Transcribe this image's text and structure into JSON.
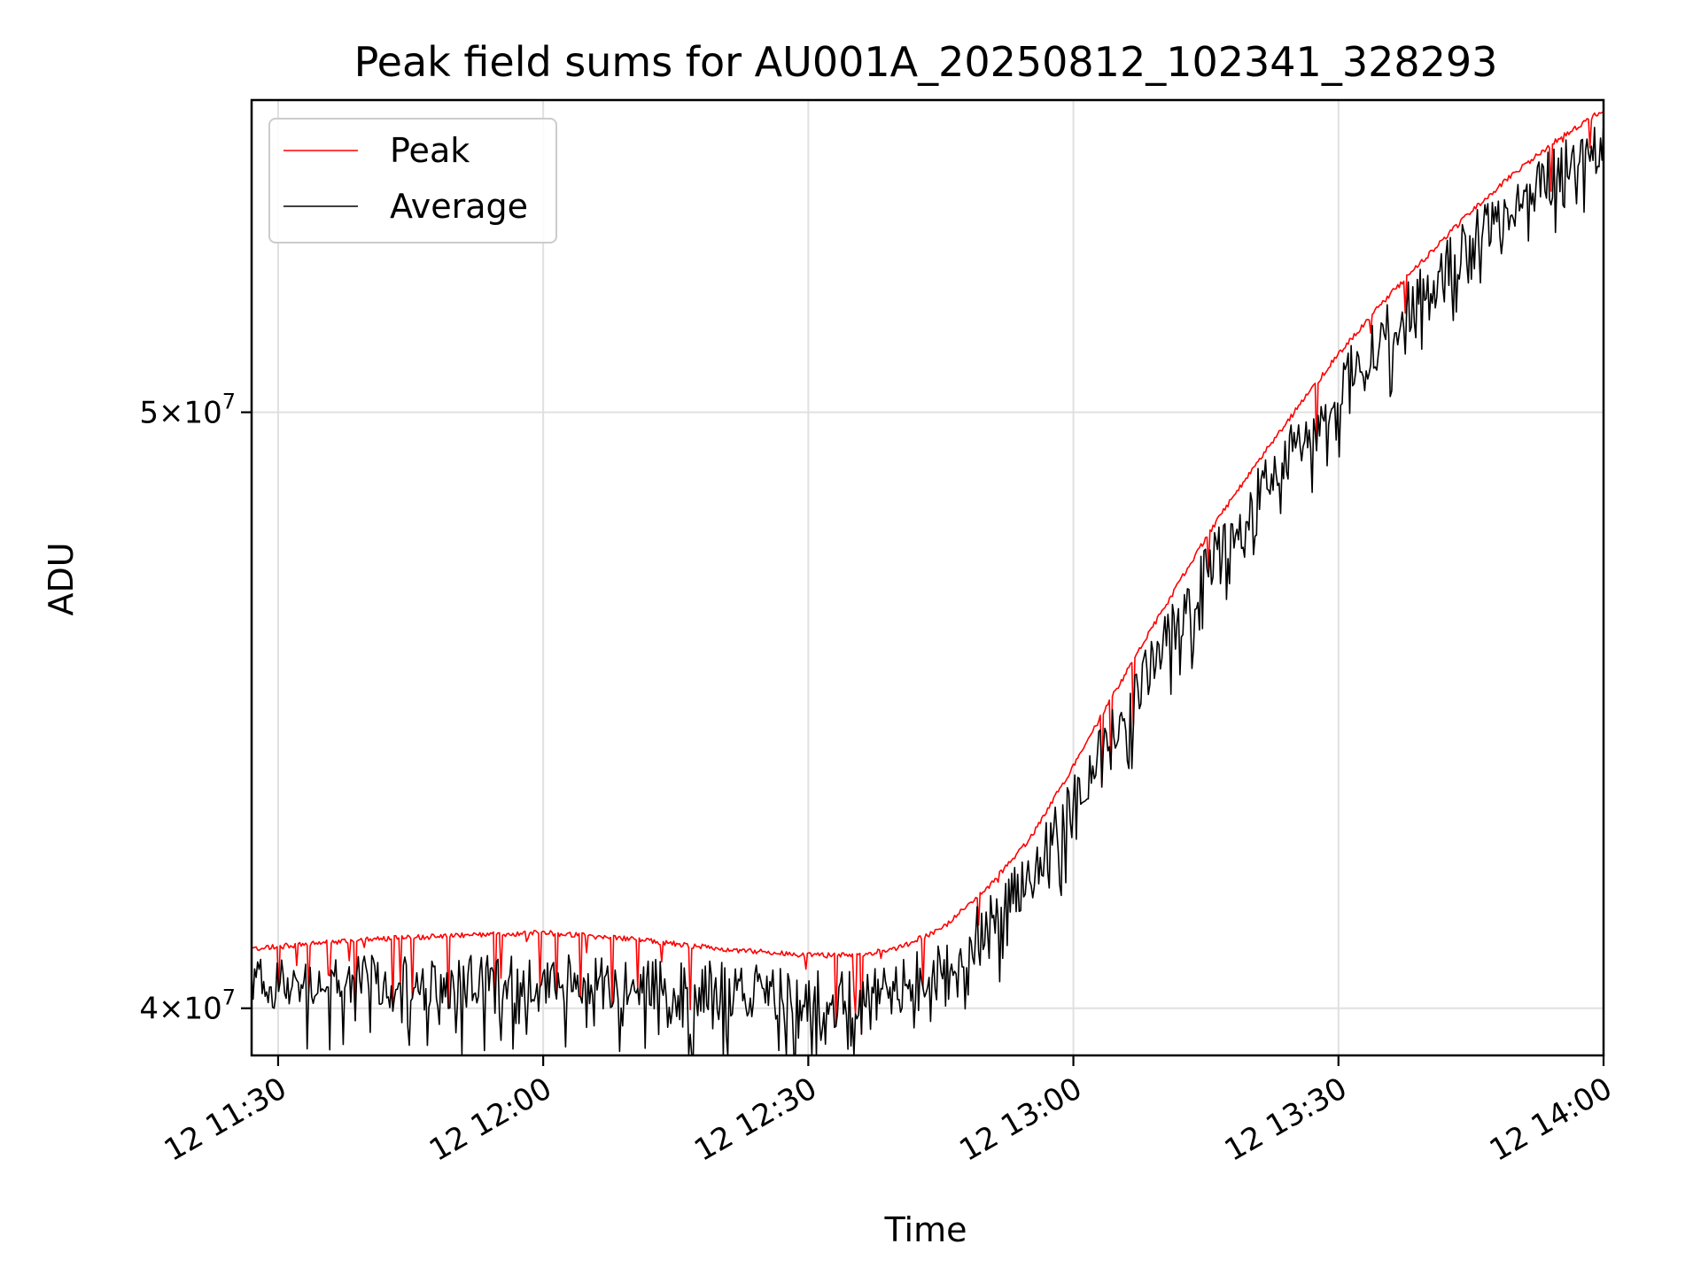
{
  "chart_data": {
    "type": "line",
    "title": "Peak field sums for AU001A_20250812_102341_328293",
    "xlabel": "Time",
    "ylabel": "ADU",
    "x_ticks": [
      "12 11:30",
      "12 12:00",
      "12 12:30",
      "12 13:00",
      "12 13:30",
      "12 14:00"
    ],
    "y_ticks": [
      {
        "value": 40000000,
        "base": "4",
        "exp": "7"
      },
      {
        "value": 50000000,
        "base": "5",
        "exp": "7"
      }
    ],
    "y_scale": "log",
    "grid": true,
    "legend_position": "top-left",
    "xlim": [
      "2025-08-12 11:27",
      "2025-08-12 14:00"
    ],
    "ylim": [
      39300000,
      56200000
    ],
    "series": [
      {
        "name": "Peak",
        "color": "#ff0000",
        "x": [
          "2025-08-12 11:27",
          "2025-08-12 11:40",
          "2025-08-12 11:50",
          "2025-08-12 12:00",
          "2025-08-12 12:10",
          "2025-08-12 12:20",
          "2025-08-12 12:30",
          "2025-08-12 12:35",
          "2025-08-12 12:40",
          "2025-08-12 12:45",
          "2025-08-12 12:50",
          "2025-08-12 12:55",
          "2025-08-12 13:00",
          "2025-08-12 13:05",
          "2025-08-12 13:10",
          "2025-08-12 13:15",
          "2025-08-12 13:20",
          "2025-08-12 13:25",
          "2025-08-12 13:30",
          "2025-08-12 13:35",
          "2025-08-12 13:40",
          "2025-08-12 13:45",
          "2025-08-12 13:50",
          "2025-08-12 13:55",
          "2025-08-12 14:00"
        ],
        "y": [
          40900000,
          41050000,
          41100000,
          41150000,
          41050000,
          40900000,
          40800000,
          40800000,
          40900000,
          41200000,
          41800000,
          42600000,
          43800000,
          45100000,
          46400000,
          47700000,
          48900000,
          50000000,
          51100000,
          52100000,
          53000000,
          53900000,
          54700000,
          55400000,
          56000000
        ]
      },
      {
        "name": "Average",
        "color": "#000000",
        "x": [
          "2025-08-12 11:27",
          "2025-08-12 11:40",
          "2025-08-12 11:50",
          "2025-08-12 12:00",
          "2025-08-12 12:10",
          "2025-08-12 12:20",
          "2025-08-12 12:30",
          "2025-08-12 12:35",
          "2025-08-12 12:40",
          "2025-08-12 12:45",
          "2025-08-12 12:50",
          "2025-08-12 12:55",
          "2025-08-12 13:00",
          "2025-08-12 13:05",
          "2025-08-12 13:10",
          "2025-08-12 13:15",
          "2025-08-12 13:20",
          "2025-08-12 13:25",
          "2025-08-12 13:30",
          "2025-08-12 13:35",
          "2025-08-12 13:40",
          "2025-08-12 13:45",
          "2025-08-12 13:50",
          "2025-08-12 13:55",
          "2025-08-12 14:00"
        ],
        "y": [
          40400000,
          40400000,
          40400000,
          40450000,
          40400000,
          40300000,
          40200000,
          40200000,
          40300000,
          40650000,
          41250000,
          42050000,
          43200000,
          44500000,
          45800000,
          47100000,
          48300000,
          49400000,
          50500000,
          51500000,
          52400000,
          53300000,
          54100000,
          54800000,
          55400000
        ]
      }
    ]
  }
}
